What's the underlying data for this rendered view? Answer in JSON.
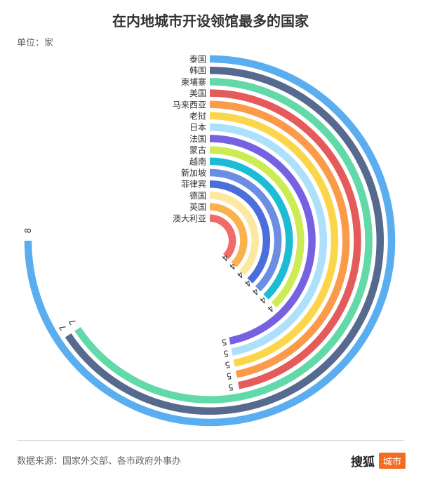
{
  "header": {
    "title": "在内地城市开设领馆最多的国家",
    "unit": "单位：家"
  },
  "footer": {
    "source": "数据来源：国家外交部、各市政府外事办",
    "brand_name": "搜狐",
    "brand_tag": "城市"
  },
  "chart_data": {
    "type": "radial-bar",
    "unit": "家",
    "categories": [
      "泰国",
      "韩国",
      "柬埔寨",
      "美国",
      "马来西亚",
      "老挝",
      "日本",
      "法国",
      "蒙古",
      "越南",
      "新加坡",
      "菲律宾",
      "德国",
      "英国",
      "澳大利亚"
    ],
    "values": [
      8,
      7,
      7,
      5,
      5,
      5,
      5,
      5,
      4,
      4,
      4,
      4,
      4,
      4,
      4
    ],
    "colors": [
      "#5aaef0",
      "#56698f",
      "#62d9a8",
      "#e55a5a",
      "#fb9b4a",
      "#fcd64a",
      "#ace0fb",
      "#7662e0",
      "#cdeb52",
      "#1bbcd4",
      "#6b8de3",
      "#4b6edb",
      "#fde8a0",
      "#fbb24c",
      "#f26b6b"
    ],
    "max": 8,
    "start_angle_deg": 0,
    "end_angle_deg": 270,
    "direction": "clockwise",
    "show_value_labels": true,
    "legend": "category labels at bar start"
  }
}
